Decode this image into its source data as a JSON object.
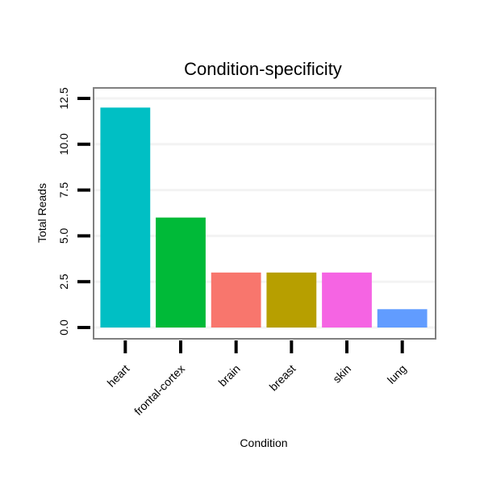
{
  "chart_data": {
    "type": "bar",
    "title": "Condition-specificity",
    "xlabel": "Condition",
    "ylabel": "Total Reads",
    "categories": [
      "heart",
      "frontal-cortex",
      "brain",
      "breast",
      "skin",
      "lung"
    ],
    "values": [
      12,
      6,
      3,
      3,
      3,
      1
    ],
    "colors": [
      "#00BFC4",
      "#00BA38",
      "#F8766D",
      "#B79F00",
      "#F564E3",
      "#619CFF"
    ],
    "ylim": [
      0,
      12.5
    ],
    "yticks": [
      0,
      2.5,
      5,
      7.5,
      10,
      12.5
    ],
    "ytick_labels": [
      "0.0",
      "2.5",
      "5.0",
      "7.5",
      "10.0",
      "12.5"
    ],
    "grid": true,
    "legend": false
  }
}
